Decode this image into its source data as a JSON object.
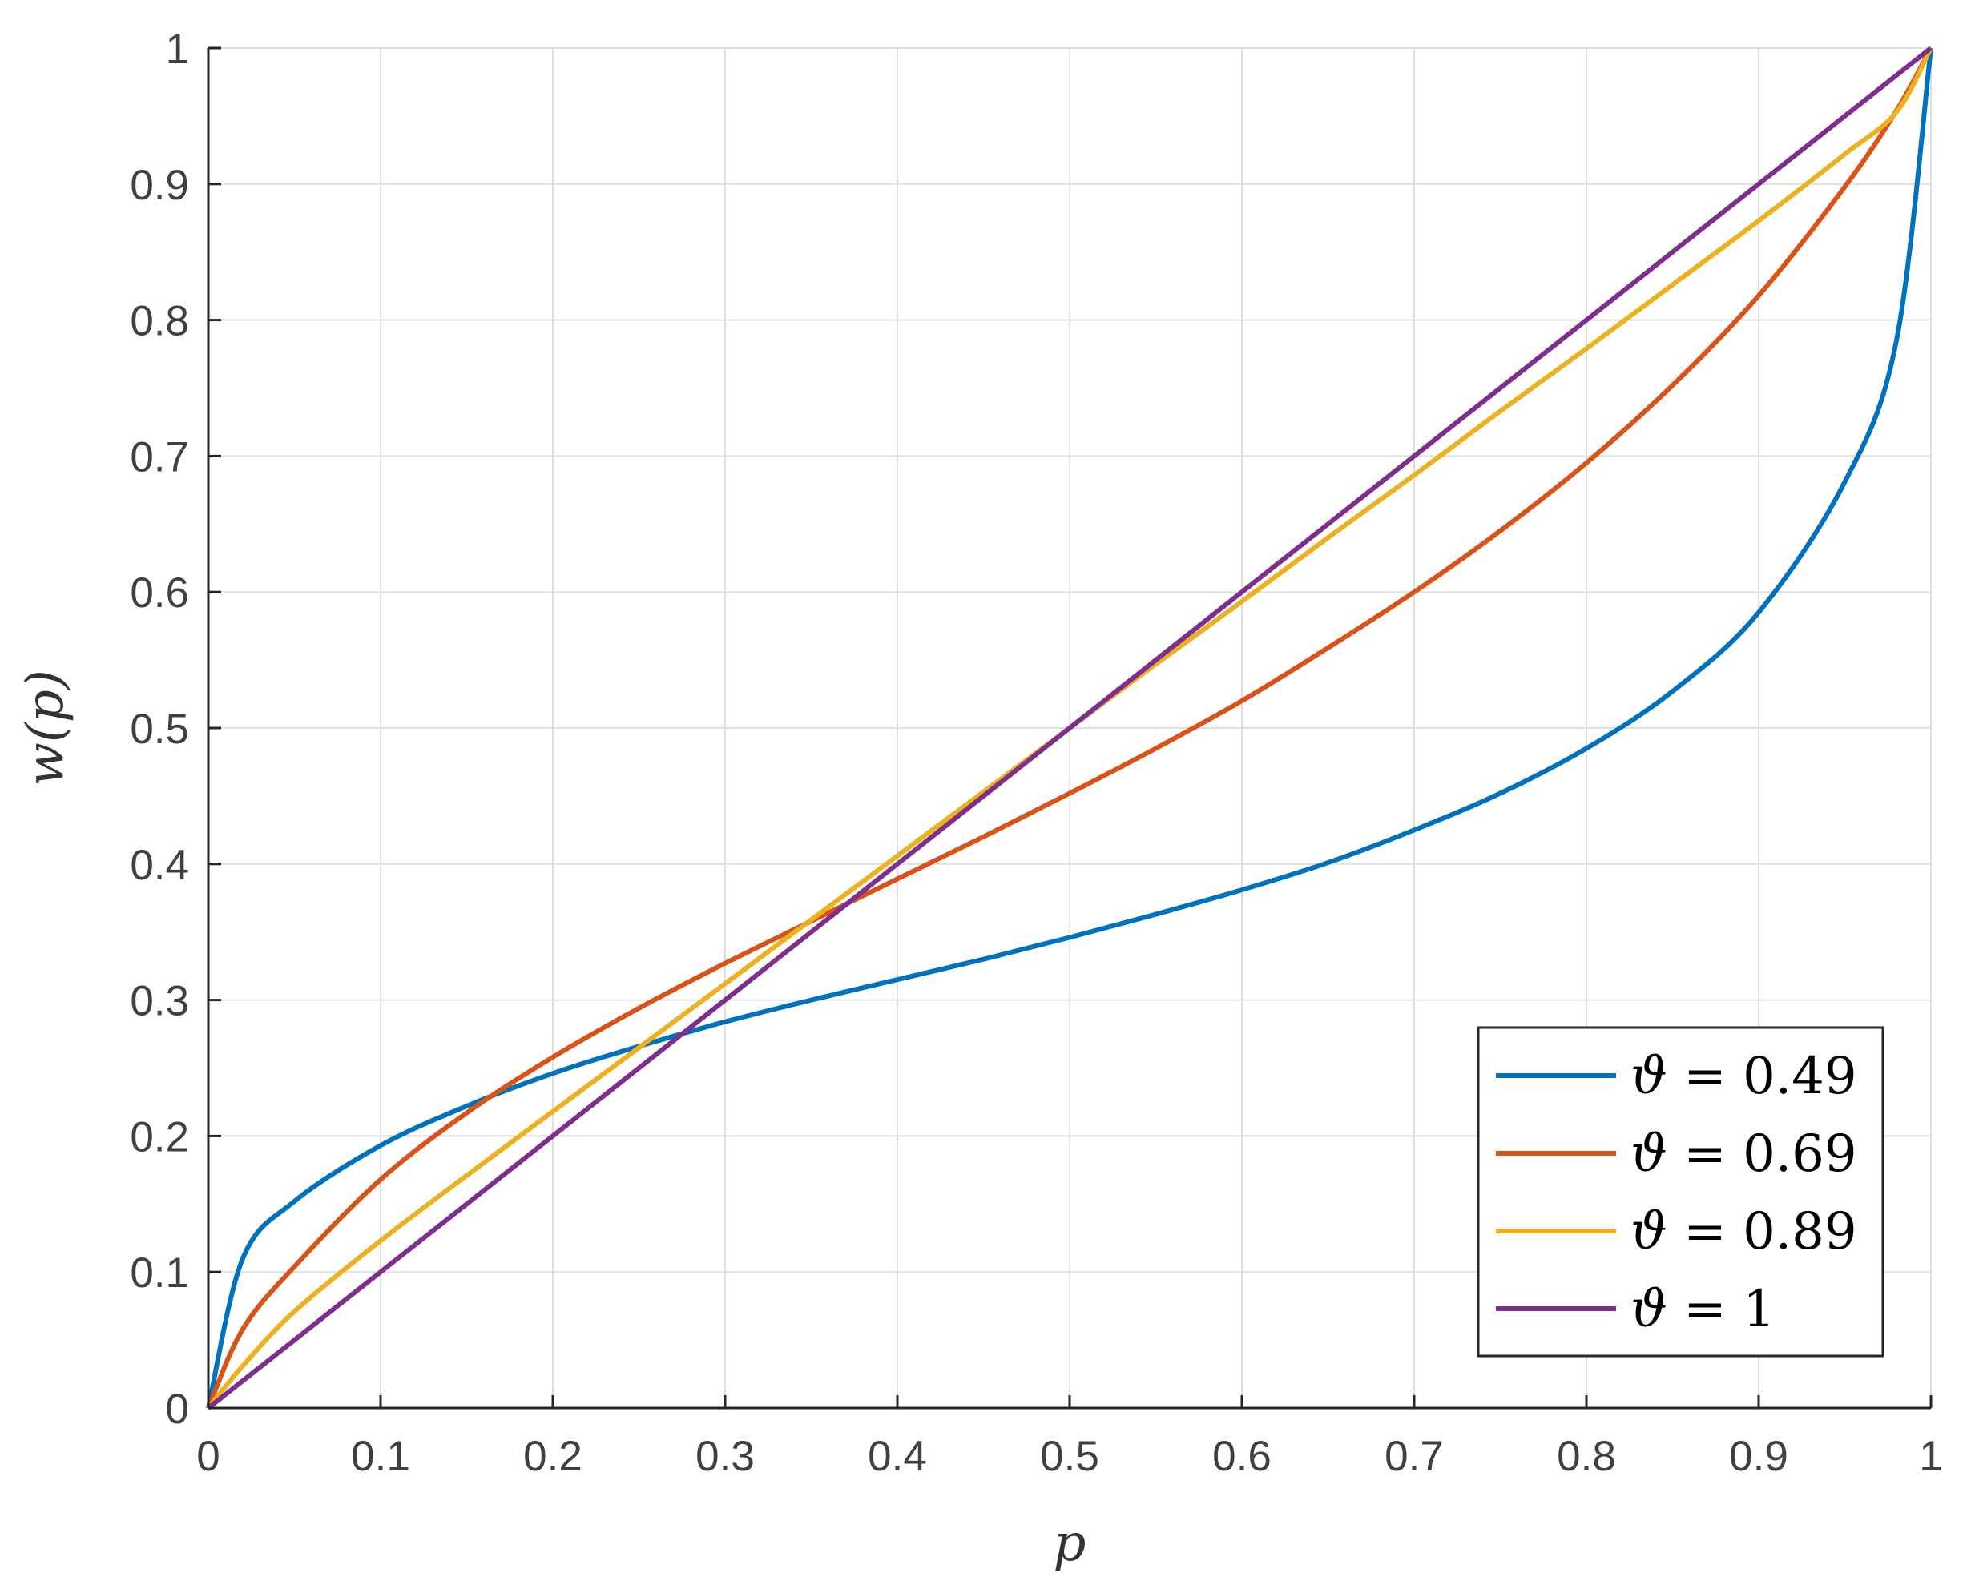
{
  "chart_data": {
    "type": "line",
    "title": "",
    "xlabel": "p",
    "ylabel": "w(p)",
    "xlim": [
      0,
      1
    ],
    "ylim": [
      0,
      1
    ],
    "xticks": [
      0,
      0.1,
      0.2,
      0.3,
      0.4,
      0.5,
      0.6,
      0.7,
      0.8,
      0.9,
      1
    ],
    "yticks": [
      0,
      0.1,
      0.2,
      0.3,
      0.4,
      0.5,
      0.6,
      0.7,
      0.8,
      0.9,
      1
    ],
    "xtick_labels": [
      "0",
      "0.1",
      "0.2",
      "0.3",
      "0.4",
      "0.5",
      "0.6",
      "0.7",
      "0.8",
      "0.9",
      "1"
    ],
    "ytick_labels": [
      "0",
      "0.1",
      "0.2",
      "0.3",
      "0.4",
      "0.5",
      "0.6",
      "0.7",
      "0.8",
      "0.9",
      "1"
    ],
    "grid": true,
    "legend_position": "bottom-right",
    "x": [
      0,
      0.02,
      0.05,
      0.1,
      0.15,
      0.2,
      0.25,
      0.3,
      0.35,
      0.4,
      0.45,
      0.5,
      0.55,
      0.6,
      0.65,
      0.7,
      0.75,
      0.8,
      0.85,
      0.9,
      0.95,
      0.98,
      1
    ],
    "series": [
      {
        "name": "ϑ = 0.49",
        "theta": 0.49,
        "color": "#0072BD",
        "values": [
          0,
          0.11,
          0.152,
          0.193,
          0.222,
          0.246,
          0.266,
          0.284,
          0.3,
          0.315,
          0.33,
          0.346,
          0.363,
          0.381,
          0.401,
          0.425,
          0.452,
          0.485,
          0.527,
          0.585,
          0.681,
          0.785,
          1
        ]
      },
      {
        "name": "ϑ = 0.69",
        "theta": 0.69,
        "color": "#D95319",
        "values": [
          0,
          0.058,
          0.104,
          0.168,
          0.217,
          0.258,
          0.294,
          0.327,
          0.358,
          0.389,
          0.42,
          0.452,
          0.485,
          0.52,
          0.559,
          0.6,
          0.645,
          0.695,
          0.752,
          0.818,
          0.898,
          0.954,
          1
        ]
      },
      {
        "name": "ϑ = 0.89",
        "theta": 0.89,
        "color": "#EDB120",
        "values": [
          0,
          0.031,
          0.071,
          0.123,
          0.171,
          0.218,
          0.265,
          0.312,
          0.359,
          0.406,
          0.453,
          0.5,
          0.547,
          0.593,
          0.64,
          0.686,
          0.733,
          0.779,
          0.826,
          0.873,
          0.922,
          0.953,
          1
        ]
      },
      {
        "name": "ϑ = 1",
        "theta": 1,
        "color": "#7E2F8E",
        "values": [
          0,
          0.02,
          0.05,
          0.1,
          0.15,
          0.2,
          0.25,
          0.3,
          0.35,
          0.4,
          0.45,
          0.5,
          0.55,
          0.6,
          0.65,
          0.7,
          0.75,
          0.8,
          0.85,
          0.9,
          0.95,
          0.98,
          1
        ]
      }
    ],
    "legend": {
      "entries": [
        {
          "symbol": "ϑ",
          "text": " = 0.49"
        },
        {
          "symbol": "ϑ",
          "text": " = 0.69"
        },
        {
          "symbol": "ϑ",
          "text": " = 0.89"
        },
        {
          "symbol": "ϑ",
          "text": " = 1"
        }
      ]
    }
  }
}
